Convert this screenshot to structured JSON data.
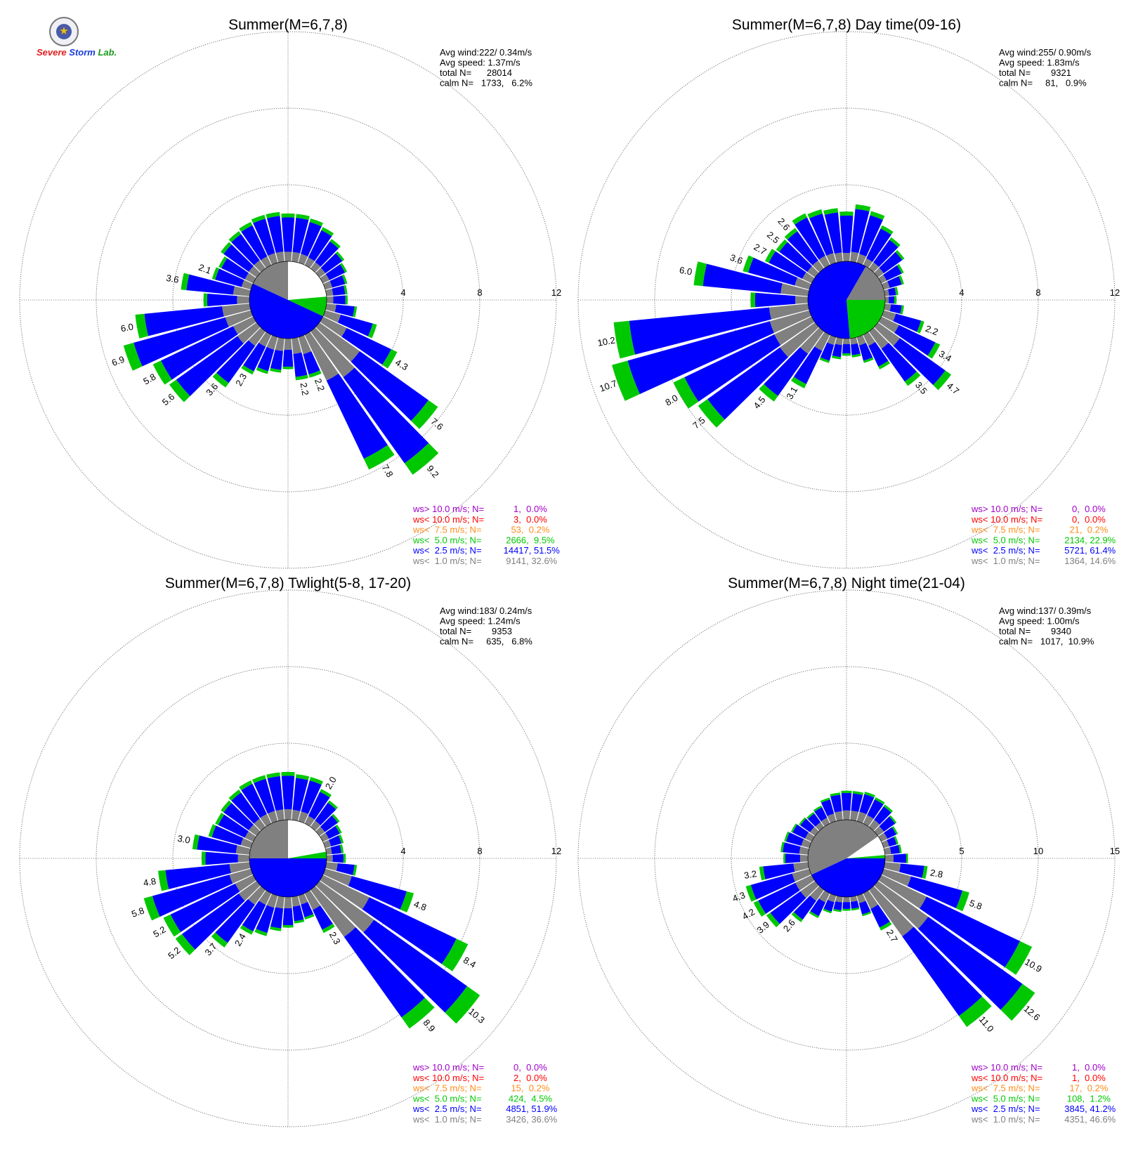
{
  "colors": {
    "gray": "#808080",
    "blue": "#0000ff",
    "green": "#00c800",
    "orange": "#ff8c1a",
    "red": "#ff0000",
    "purple": "#a000c8",
    "grid": "#666666",
    "text": "#000000"
  },
  "logo": {
    "icon": "severe-storm-lab-seal-icon",
    "text": "Severe Storm Lab."
  },
  "legend_labels": [
    "ws> 10.0 m/s; N=",
    "ws< 10.0 m/s; N=",
    "ws<  7.5 m/s; N=",
    "ws<  5.0 m/s; N=",
    "ws<  2.5 m/s; N=",
    "ws<  1.0 m/s; N="
  ],
  "chart_data": [
    {
      "type": "wind-rose",
      "title": "Summer(M=6,7,8)",
      "rmax": 12,
      "ticks": [
        "4",
        "8",
        "12"
      ],
      "stats": [
        "Avg wind:222/ 0.34m/s",
        "Avg speed: 1.37m/s",
        "total N=      28014",
        "calm N=   1733,   6.2%"
      ],
      "legend_values": [
        "     1,  0.0%",
        "     3,  0.0%",
        "    53,  0.2%",
        "  2666,  9.5%",
        " 14417, 51.5%",
        "  9141, 32.6%"
      ],
      "calm_pie": [
        {
          "from": 0,
          "to": 85,
          "color": "white"
        },
        {
          "from": 85,
          "to": 115,
          "color": "green"
        },
        {
          "from": 115,
          "to": 295,
          "color": "blue"
        },
        {
          "from": 295,
          "to": 360,
          "color": "gray"
        }
      ],
      "bars": [
        {
          "dir": 0,
          "total": 2.5,
          "blue_frac": 0.72
        },
        {
          "dir": 10,
          "total": 2.5,
          "blue_frac": 0.72
        },
        {
          "dir": 20,
          "total": 2.4,
          "blue_frac": 0.72
        },
        {
          "dir": 30,
          "total": 2.2,
          "blue_frac": 0.72
        },
        {
          "dir": 40,
          "total": 1.9,
          "blue_frac": 0.7
        },
        {
          "dir": 50,
          "total": 1.6,
          "blue_frac": 0.68
        },
        {
          "dir": 60,
          "total": 1.4,
          "blue_frac": 0.65
        },
        {
          "dir": 70,
          "total": 1.2,
          "blue_frac": 0.6
        },
        {
          "dir": 80,
          "total": 1.1,
          "blue_frac": 0.6
        },
        {
          "dir": 90,
          "total": 1.1,
          "blue_frac": 0.6
        },
        {
          "dir": 100,
          "total": 1.6,
          "blue_frac": 0.6
        },
        {
          "dir": 110,
          "total": 2.8,
          "blue_frac": 0.62
        },
        {
          "dir": 120,
          "total": 4.3,
          "blue_frac": 0.6,
          "label": "4.3"
        },
        {
          "dir": 130,
          "total": 7.6,
          "blue_frac": 0.58,
          "label": "7.6"
        },
        {
          "dir": 140,
          "total": 9.2,
          "blue_frac": 0.6,
          "label": "9.2"
        },
        {
          "dir": 150,
          "total": 7.8,
          "blue_frac": 0.58,
          "label": "7.8"
        },
        {
          "dir": 160,
          "total": 2.2,
          "blue_frac": 0.5,
          "label": "2.2"
        },
        {
          "dir": 170,
          "total": 2.2,
          "blue_frac": 0.55,
          "label": "2.2"
        },
        {
          "dir": 180,
          "total": 1.6,
          "blue_frac": 0.55
        },
        {
          "dir": 190,
          "total": 1.8,
          "blue_frac": 0.55
        },
        {
          "dir": 200,
          "total": 2.0,
          "blue_frac": 0.58
        },
        {
          "dir": 210,
          "total": 2.3,
          "blue_frac": 0.62,
          "label": "2.3"
        },
        {
          "dir": 220,
          "total": 3.6,
          "blue_frac": 0.66,
          "label": "3.6"
        },
        {
          "dir": 230,
          "total": 5.6,
          "blue_frac": 0.7,
          "label": "5.6"
        },
        {
          "dir": 240,
          "total": 5.8,
          "blue_frac": 0.72,
          "label": "5.8"
        },
        {
          "dir": 250,
          "total": 6.9,
          "blue_frac": 0.72,
          "label": "6.9"
        },
        {
          "dir": 260,
          "total": 6.0,
          "blue_frac": 0.68,
          "label": "6.0"
        },
        {
          "dir": 270,
          "total": 2.4,
          "blue_frac": 0.65
        },
        {
          "dir": 280,
          "total": 3.6,
          "blue_frac": 0.68,
          "label": "3.6"
        },
        {
          "dir": 290,
          "total": 2.1,
          "blue_frac": 0.68,
          "label": "2.1"
        },
        {
          "dir": 300,
          "total": 2.0,
          "blue_frac": 0.68
        },
        {
          "dir": 310,
          "total": 2.3,
          "blue_frac": 0.7
        },
        {
          "dir": 320,
          "total": 2.4,
          "blue_frac": 0.7
        },
        {
          "dir": 330,
          "total": 2.5,
          "blue_frac": 0.72
        },
        {
          "dir": 340,
          "total": 2.6,
          "blue_frac": 0.72
        },
        {
          "dir": 350,
          "total": 2.6,
          "blue_frac": 0.72
        }
      ]
    },
    {
      "type": "wind-rose",
      "title": "Summer(M=6,7,8) Day time(09-16)",
      "rmax": 12,
      "ticks": [
        "4",
        "8",
        "12"
      ],
      "stats": [
        "Avg wind:255/ 0.90m/s",
        "Avg speed: 1.83m/s",
        "total N=        9321",
        "calm N=     81,   0.9%"
      ],
      "legend_values": [
        "     0,  0.0%",
        "     0,  0.0%",
        "    21,  0.2%",
        "  2134, 22.9%",
        "  5721, 61.4%",
        "  1364, 14.6%"
      ],
      "calm_pie": [
        {
          "from": 0,
          "to": 30,
          "color": "blue"
        },
        {
          "from": 30,
          "to": 90,
          "color": "gray"
        },
        {
          "from": 90,
          "to": 175,
          "color": "green"
        },
        {
          "from": 175,
          "to": 360,
          "color": "blue"
        }
      ],
      "bars": [
        {
          "dir": 0,
          "total": 2.6,
          "blue_frac": 0.75
        },
        {
          "dir": 10,
          "total": 3.0,
          "blue_frac": 0.75
        },
        {
          "dir": 20,
          "total": 2.8,
          "blue_frac": 0.75
        },
        {
          "dir": 30,
          "total": 2.3,
          "blue_frac": 0.75
        },
        {
          "dir": 40,
          "total": 2.0,
          "blue_frac": 0.72
        },
        {
          "dir": 50,
          "total": 1.7,
          "blue_frac": 0.7
        },
        {
          "dir": 60,
          "total": 1.3,
          "blue_frac": 0.68
        },
        {
          "dir": 70,
          "total": 1.1,
          "blue_frac": 0.62
        },
        {
          "dir": 80,
          "total": 0.7,
          "blue_frac": 0.6
        },
        {
          "dir": 90,
          "total": 0.6,
          "blue_frac": 0.6
        },
        {
          "dir": 100,
          "total": 1.0,
          "blue_frac": 0.6
        },
        {
          "dir": 110,
          "total": 2.2,
          "blue_frac": 0.62,
          "label": "2.2"
        },
        {
          "dir": 120,
          "total": 3.4,
          "blue_frac": 0.62,
          "label": "3.4"
        },
        {
          "dir": 130,
          "total": 4.7,
          "blue_frac": 0.62,
          "label": "4.7"
        },
        {
          "dir": 140,
          "total": 3.5,
          "blue_frac": 0.6,
          "label": "3.5"
        },
        {
          "dir": 150,
          "total": 2.0,
          "blue_frac": 0.6
        },
        {
          "dir": 160,
          "total": 1.4,
          "blue_frac": 0.6
        },
        {
          "dir": 170,
          "total": 1.0,
          "blue_frac": 0.6
        },
        {
          "dir": 180,
          "total": 0.9,
          "blue_frac": 0.6
        },
        {
          "dir": 190,
          "total": 1.1,
          "blue_frac": 0.6
        },
        {
          "dir": 200,
          "total": 1.4,
          "blue_frac": 0.62
        },
        {
          "dir": 210,
          "total": 3.1,
          "blue_frac": 0.62,
          "label": "3.1"
        },
        {
          "dir": 220,
          "total": 4.5,
          "blue_frac": 0.6,
          "label": "4.5"
        },
        {
          "dir": 230,
          "total": 7.5,
          "blue_frac": 0.62,
          "label": "7.5"
        },
        {
          "dir": 240,
          "total": 8.0,
          "blue_frac": 0.65,
          "label": "8.0"
        },
        {
          "dir": 250,
          "total": 10.7,
          "blue_frac": 0.72,
          "label": "10.7"
        },
        {
          "dir": 260,
          "total": 10.2,
          "blue_frac": 0.72,
          "label": "10.2"
        },
        {
          "dir": 270,
          "total": 3.0,
          "blue_frac": 0.7
        },
        {
          "dir": 280,
          "total": 6.0,
          "blue_frac": 0.68,
          "label": "6.0"
        },
        {
          "dir": 290,
          "total": 3.6,
          "blue_frac": 0.7,
          "label": "3.6"
        },
        {
          "dir": 300,
          "total": 2.7,
          "blue_frac": 0.72,
          "label": "2.7"
        },
        {
          "dir": 310,
          "total": 2.5,
          "blue_frac": 0.72,
          "label": "2.5"
        },
        {
          "dir": 320,
          "total": 2.6,
          "blue_frac": 0.72,
          "label": "2.6"
        },
        {
          "dir": 330,
          "total": 3.0,
          "blue_frac": 0.74
        },
        {
          "dir": 340,
          "total": 2.9,
          "blue_frac": 0.74
        },
        {
          "dir": 350,
          "total": 2.8,
          "blue_frac": 0.75
        }
      ]
    },
    {
      "type": "wind-rose",
      "title": "Summer(M=6,7,8) Twlight(5-8, 17-20)",
      "rmax": 12,
      "ticks": [
        "4",
        "8",
        "12"
      ],
      "stats": [
        "Avg wind:183/ 0.24m/s",
        "Avg speed: 1.24m/s",
        "total N=        9353",
        "calm N=     635,   6.8%"
      ],
      "legend_values": [
        "     0,  0.0%",
        "     2,  0.0%",
        "    15,  0.2%",
        "   424,  4.5%",
        "  4851, 51.9%",
        "  3426, 36.6%"
      ],
      "calm_pie": [
        {
          "from": 0,
          "to": 80,
          "color": "white"
        },
        {
          "from": 80,
          "to": 90,
          "color": "green"
        },
        {
          "from": 90,
          "to": 270,
          "color": "blue"
        },
        {
          "from": 270,
          "to": 360,
          "color": "gray"
        }
      ],
      "bars": [
        {
          "dir": 0,
          "total": 2.5,
          "blue_frac": 0.7
        },
        {
          "dir": 10,
          "total": 2.4,
          "blue_frac": 0.7
        },
        {
          "dir": 20,
          "total": 2.4,
          "blue_frac": 0.7
        },
        {
          "dir": 30,
          "total": 2.0,
          "blue_frac": 0.7,
          "label": "2.0"
        },
        {
          "dir": 40,
          "total": 1.7,
          "blue_frac": 0.68
        },
        {
          "dir": 50,
          "total": 1.3,
          "blue_frac": 0.65
        },
        {
          "dir": 60,
          "total": 1.1,
          "blue_frac": 0.6
        },
        {
          "dir": 70,
          "total": 1.0,
          "blue_frac": 0.6
        },
        {
          "dir": 80,
          "total": 0.9,
          "blue_frac": 0.6
        },
        {
          "dir": 90,
          "total": 1.0,
          "blue_frac": 0.6
        },
        {
          "dir": 100,
          "total": 1.6,
          "blue_frac": 0.55
        },
        {
          "dir": 110,
          "total": 4.8,
          "blue_frac": 0.62,
          "label": "4.8"
        },
        {
          "dir": 120,
          "total": 8.4,
          "blue_frac": 0.6,
          "label": "8.4"
        },
        {
          "dir": 130,
          "total": 10.3,
          "blue_frac": 0.58,
          "label": "10.3"
        },
        {
          "dir": 140,
          "total": 8.9,
          "blue_frac": 0.58,
          "label": "8.9"
        },
        {
          "dir": 150,
          "total": 2.3,
          "blue_frac": 0.5,
          "label": "2.3"
        },
        {
          "dir": 160,
          "total": 1.3,
          "blue_frac": 0.55
        },
        {
          "dir": 170,
          "total": 1.4,
          "blue_frac": 0.55
        },
        {
          "dir": 180,
          "total": 1.6,
          "blue_frac": 0.55
        },
        {
          "dir": 190,
          "total": 1.8,
          "blue_frac": 0.58
        },
        {
          "dir": 200,
          "total": 2.2,
          "blue_frac": 0.62
        },
        {
          "dir": 210,
          "total": 2.4,
          "blue_frac": 0.64,
          "label": "2.4"
        },
        {
          "dir": 220,
          "total": 3.7,
          "blue_frac": 0.66,
          "label": "3.7"
        },
        {
          "dir": 230,
          "total": 5.2,
          "blue_frac": 0.7,
          "label": "5.2"
        },
        {
          "dir": 240,
          "total": 5.2,
          "blue_frac": 0.72,
          "label": "5.2"
        },
        {
          "dir": 250,
          "total": 5.8,
          "blue_frac": 0.72,
          "label": "5.8"
        },
        {
          "dir": 260,
          "total": 4.8,
          "blue_frac": 0.7,
          "label": "4.8"
        },
        {
          "dir": 270,
          "total": 2.5,
          "blue_frac": 0.68
        },
        {
          "dir": 280,
          "total": 3.0,
          "blue_frac": 0.68,
          "label": "3.0"
        },
        {
          "dir": 290,
          "total": 2.3,
          "blue_frac": 0.68
        },
        {
          "dir": 300,
          "total": 2.2,
          "blue_frac": 0.7
        },
        {
          "dir": 310,
          "total": 2.3,
          "blue_frac": 0.7
        },
        {
          "dir": 320,
          "total": 2.4,
          "blue_frac": 0.7
        },
        {
          "dir": 330,
          "total": 2.5,
          "blue_frac": 0.7
        },
        {
          "dir": 340,
          "total": 2.5,
          "blue_frac": 0.7
        },
        {
          "dir": 350,
          "total": 2.5,
          "blue_frac": 0.7
        }
      ]
    },
    {
      "type": "wind-rose",
      "title": "Summer(M=6,7,8) Night time(21-04)",
      "rmax": 15,
      "ticks": [
        "5",
        "10",
        "15"
      ],
      "stats": [
        "Avg wind:137/ 0.39m/s",
        "Avg speed: 1.00m/s",
        "total N=        9340",
        "calm N=   1017,  10.9%"
      ],
      "legend_values": [
        "     1,  0.0%",
        "     1,  0.0%",
        "    17,  0.2%",
        "   108,  1.2%",
        "  3845, 41.2%",
        "  4351, 46.6%"
      ],
      "calm_pie": [
        {
          "from": 0,
          "to": 55,
          "color": "gray"
        },
        {
          "from": 55,
          "to": 85,
          "color": "white"
        },
        {
          "from": 85,
          "to": 90,
          "color": "green"
        },
        {
          "from": 90,
          "to": 245,
          "color": "blue"
        },
        {
          "from": 245,
          "to": 360,
          "color": "gray"
        }
      ],
      "bars": [
        {
          "dir": 0,
          "total": 1.9,
          "blue_frac": 0.6
        },
        {
          "dir": 10,
          "total": 1.9,
          "blue_frac": 0.6
        },
        {
          "dir": 20,
          "total": 2.0,
          "blue_frac": 0.6
        },
        {
          "dir": 30,
          "total": 1.9,
          "blue_frac": 0.6
        },
        {
          "dir": 40,
          "total": 1.8,
          "blue_frac": 0.6
        },
        {
          "dir": 50,
          "total": 1.5,
          "blue_frac": 0.6
        },
        {
          "dir": 60,
          "total": 1.2,
          "blue_frac": 0.55
        },
        {
          "dir": 70,
          "total": 1.0,
          "blue_frac": 0.55
        },
        {
          "dir": 80,
          "total": 1.1,
          "blue_frac": 0.55
        },
        {
          "dir": 90,
          "total": 1.5,
          "blue_frac": 0.55
        },
        {
          "dir": 100,
          "total": 2.8,
          "blue_frac": 0.55,
          "label": "2.8"
        },
        {
          "dir": 110,
          "total": 5.8,
          "blue_frac": 0.6,
          "label": "5.8"
        },
        {
          "dir": 120,
          "total": 10.9,
          "blue_frac": 0.62,
          "label": "10.9"
        },
        {
          "dir": 130,
          "total": 12.6,
          "blue_frac": 0.6,
          "label": "12.6"
        },
        {
          "dir": 140,
          "total": 11.0,
          "blue_frac": 0.58,
          "label": "11.0"
        },
        {
          "dir": 150,
          "total": 2.7,
          "blue_frac": 0.5,
          "label": "2.7"
        },
        {
          "dir": 160,
          "total": 1.4,
          "blue_frac": 0.55
        },
        {
          "dir": 170,
          "total": 0.9,
          "blue_frac": 0.55
        },
        {
          "dir": 180,
          "total": 0.9,
          "blue_frac": 0.55
        },
        {
          "dir": 190,
          "total": 1.0,
          "blue_frac": 0.55
        },
        {
          "dir": 200,
          "total": 1.2,
          "blue_frac": 0.55
        },
        {
          "dir": 210,
          "total": 1.8,
          "blue_frac": 0.55
        },
        {
          "dir": 220,
          "total": 2.6,
          "blue_frac": 0.58,
          "label": "2.6"
        },
        {
          "dir": 230,
          "total": 3.9,
          "blue_frac": 0.62,
          "label": "3.9"
        },
        {
          "dir": 240,
          "total": 4.2,
          "blue_frac": 0.64,
          "label": "4.2"
        },
        {
          "dir": 250,
          "total": 4.3,
          "blue_frac": 0.65,
          "label": "4.3"
        },
        {
          "dir": 260,
          "total": 3.2,
          "blue_frac": 0.62,
          "label": "3.2"
        },
        {
          "dir": 270,
          "total": 1.6,
          "blue_frac": 0.6
        },
        {
          "dir": 280,
          "total": 1.8,
          "blue_frac": 0.6
        },
        {
          "dir": 290,
          "total": 1.7,
          "blue_frac": 0.6
        },
        {
          "dir": 300,
          "total": 1.5,
          "blue_frac": 0.6
        },
        {
          "dir": 310,
          "total": 1.3,
          "blue_frac": 0.6
        },
        {
          "dir": 320,
          "total": 1.2,
          "blue_frac": 0.6
        },
        {
          "dir": 330,
          "total": 1.3,
          "blue_frac": 0.6
        },
        {
          "dir": 340,
          "total": 1.6,
          "blue_frac": 0.6
        },
        {
          "dir": 350,
          "total": 1.8,
          "blue_frac": 0.6
        }
      ]
    }
  ]
}
